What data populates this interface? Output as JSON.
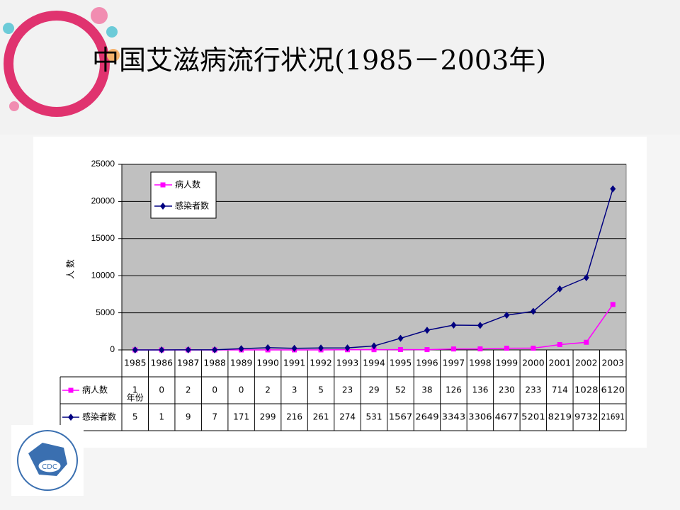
{
  "chart_data": {
    "type": "line",
    "title": "中国艾滋病流行状况(1985－2003年)",
    "y_label": "人 数",
    "x_label": "年份",
    "categories": [
      "1985",
      "1986",
      "1987",
      "1988",
      "1989",
      "1990",
      "1991",
      "1992",
      "1993",
      "1994",
      "1995",
      "1996",
      "1997",
      "1998",
      "1999",
      "2000",
      "2001",
      "2002",
      "2003"
    ],
    "series": [
      {
        "name": "病人数",
        "color": "#ff00ff",
        "marker": "square",
        "values": [
          1,
          0,
          2,
          0,
          0,
          2,
          3,
          5,
          23,
          29,
          52,
          38,
          126,
          136,
          230,
          233,
          714,
          1028,
          6120
        ]
      },
      {
        "name": "感染者数",
        "color": "#000080",
        "marker": "diamond",
        "values": [
          5,
          1,
          9,
          7,
          171,
          299,
          216,
          261,
          274,
          531,
          1567,
          2649,
          3343,
          3306,
          4677,
          5201,
          8219,
          9732,
          21691
        ]
      }
    ],
    "ylim": [
      0,
      25000
    ],
    "yticks": [
      0,
      5000,
      10000,
      15000,
      20000,
      25000
    ],
    "grid": true,
    "legend": "upper-left"
  }
}
